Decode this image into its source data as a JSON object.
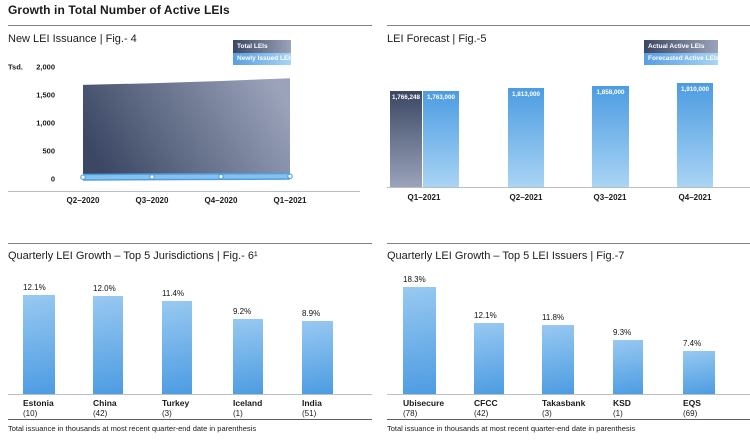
{
  "page": {
    "title": "Growth in Total Number of Active LEIs"
  },
  "colors": {
    "navy_dark": "#3b4763",
    "navy_light": "#9aa3ba",
    "blue": "#4c9ce2",
    "blue_pale": "#a9d4f4",
    "blue_soft": "#98c9f1",
    "blue_band": "#4f9fe0",
    "blue_band_fill": "#85c2ef",
    "axis_line": "#b9bfc6",
    "rule": "#7e848d",
    "rule_footer": "#596068",
    "text": "#1a1a1a"
  },
  "footnotes": {
    "left": "Total issuance in thousands at most recent quarter-end date in parenthesis",
    "right": "Total issuance in thousands at most recent quarter-end date in parenthesis"
  },
  "chart_data": [
    {
      "id": "fig4",
      "type": "area",
      "title": "New LEI Issuance  |  Fig.- 4",
      "y_axis_unit": "Tsd.",
      "ytick_labels": [
        "2,000",
        "1,500",
        "1,000",
        "500",
        "0"
      ],
      "ytick_values": [
        2000,
        1500,
        1000,
        500,
        0
      ],
      "ylim": [
        0,
        2000
      ],
      "legend_position": "top-right",
      "x_categories": [
        "Q2–2020",
        "Q3–2020",
        "Q4–2020",
        "Q1–2021"
      ],
      "series": [
        {
          "name": "Total LEIs",
          "values": [
            1680,
            1710,
            1750,
            1800
          ],
          "values_estimated": true
        },
        {
          "name": "Newly Issued LEIs",
          "values": [
            33,
            38,
            42,
            48
          ],
          "values_estimated": true
        }
      ]
    },
    {
      "id": "fig5",
      "type": "bar",
      "title": "LEI Forecast  |  Fig.-5",
      "legend": [
        "Actual Active LEIs",
        "Forecasted Active LEIs"
      ],
      "legend_position": "top-right",
      "categories": [
        "Q1–2021",
        "Q2–2021",
        "Q3–2021",
        "Q4–2021"
      ],
      "bars": [
        {
          "category": "Q1–2021",
          "series": "Actual Active LEIs",
          "value": 1766248,
          "label": "1,766,248"
        },
        {
          "category": "Q1–2021",
          "series": "Forecasted Active LEIs",
          "value": 1763000,
          "label": "1,763,000"
        },
        {
          "category": "Q2–2021",
          "series": "Forecasted Active LEIs",
          "value": 1813000,
          "label": "1,813,000"
        },
        {
          "category": "Q3–2021",
          "series": "Forecasted Active LEIs",
          "value": 1858000,
          "label": "1,858,000"
        },
        {
          "category": "Q4–2021",
          "series": "Forecasted Active LEIs",
          "value": 1910000,
          "label": "1,910,000"
        }
      ]
    },
    {
      "id": "fig6",
      "type": "bar",
      "title": "Quarterly LEI Growth – Top 5 Jurisdictions  |  Fig.- 6¹",
      "ylabel": "Quarterly growth (%)",
      "categories": [
        {
          "name": "Estonia",
          "count": "(10)"
        },
        {
          "name": "China",
          "count": "(42)"
        },
        {
          "name": "Turkey",
          "count": "(3)"
        },
        {
          "name": "Iceland",
          "count": "(1)"
        },
        {
          "name": "India",
          "count": "(51)"
        }
      ],
      "values": [
        12.1,
        12.0,
        11.4,
        9.2,
        8.9
      ],
      "value_labels": [
        "12.1%",
        "12.0%",
        "11.4%",
        "9.2%",
        "8.9%"
      ]
    },
    {
      "id": "fig7",
      "type": "bar",
      "title": "Quarterly LEI Growth – Top 5 LEI Issuers  |  Fig.-7",
      "ylabel": "Quarterly growth (%)",
      "categories": [
        {
          "name": "Ubisecure",
          "count": "(78)"
        },
        {
          "name": "CFCC",
          "count": "(42)"
        },
        {
          "name": "Takasbank",
          "count": "(3)"
        },
        {
          "name": "KSD",
          "count": "(1)"
        },
        {
          "name": "EQS",
          "count": "(69)"
        }
      ],
      "values": [
        18.3,
        12.1,
        11.8,
        9.3,
        7.4
      ],
      "value_labels": [
        "18.3%",
        "12.1%",
        "11.8%",
        "9.3%",
        "7.4%"
      ]
    }
  ]
}
